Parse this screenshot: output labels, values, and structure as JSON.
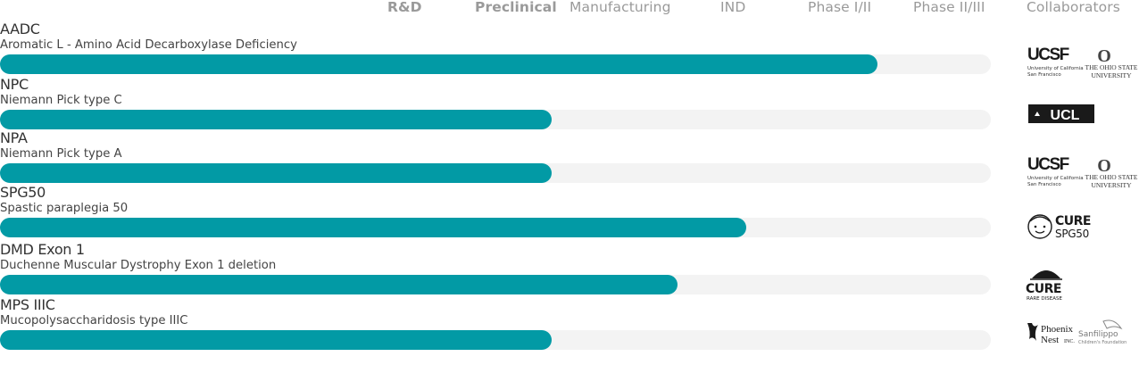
{
  "stages": [
    "R&D",
    "Preclinical",
    "Manufacturing",
    "IND",
    "Phase I/II",
    "Phase II/III",
    "Collaborators"
  ],
  "colors": {
    "bar": "#029aa5",
    "track": "#f3f3f3",
    "header": "#9a9a9a"
  },
  "chart_data": {
    "type": "bar",
    "orientation": "horizontal",
    "stage_scale": [
      "R&D",
      "Preclinical",
      "Manufacturing",
      "IND",
      "Phase I/II",
      "Phase II/III"
    ],
    "programs": [
      {
        "name": "AADC",
        "full_name": "Aromatic L - Amino Acid Decarboxylase Deficiency",
        "progress": 0.886,
        "collaborators": [
          "UCSF",
          "The Ohio State University"
        ]
      },
      {
        "name": "NPC",
        "full_name": "Niemann Pick type C",
        "progress": 0.557,
        "collaborators": [
          "UCL"
        ]
      },
      {
        "name": "NPA",
        "full_name": "Niemann Pick type A",
        "progress": 0.557,
        "collaborators": [
          "UCSF",
          "The Ohio State University"
        ]
      },
      {
        "name": "SPG50",
        "full_name": "Spastic paraplegia 50",
        "progress": 0.753,
        "collaborators": [
          "Cure SPG50"
        ]
      },
      {
        "name": "DMD Exon 1",
        "full_name": "Duchenne Muscular Dystrophy Exon 1 deletion",
        "progress": 0.684,
        "collaborators": [
          "Cure Rare Disease"
        ]
      },
      {
        "name": "MPS IIIC",
        "full_name": "Mucopolysaccharidosis type IIIC",
        "progress": 0.557,
        "collaborators": [
          "Phoenix Nest Inc",
          "Sanfilippo Children's Foundation"
        ]
      }
    ]
  },
  "logo_text": {
    "ucsf": "UCSF",
    "ucsf_line1": "University of California",
    "ucsf_line2": "San Francisco",
    "osu_o": "O",
    "osu_line1": "THE OHIO STATE",
    "osu_line2": "UNIVERSITY",
    "ucl": "UCL",
    "cure": "CURE",
    "spg50": "SPG50",
    "cure_rare": "CURE",
    "rare_disease": "RARE DISEASE",
    "phoenix": "Phoenix",
    "nest": "Nest",
    "inc": "INC.",
    "sanfilippo": "Sanfilippo",
    "sanfilippo_sub": "Children's Foundation"
  }
}
